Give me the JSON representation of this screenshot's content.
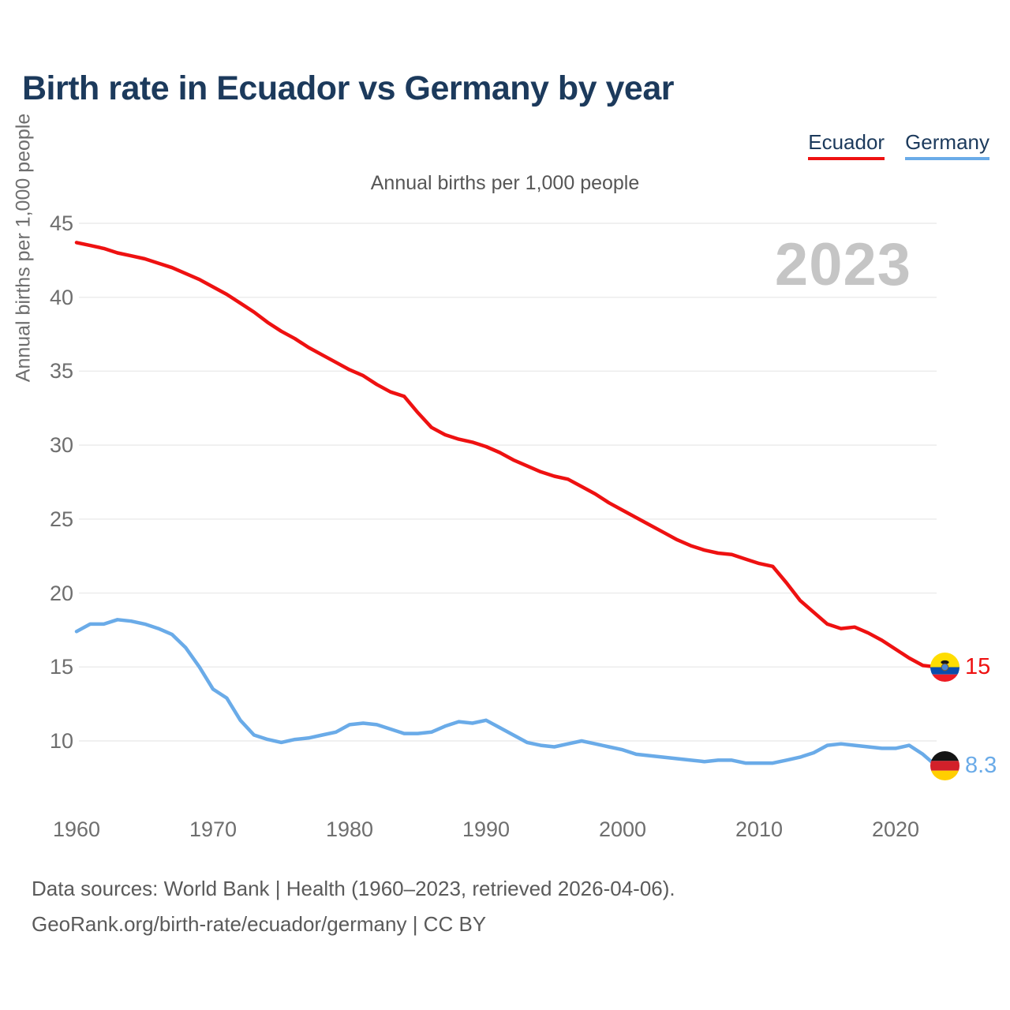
{
  "header": {
    "title": "Birth rate in Ecuador vs Germany by year"
  },
  "footer": {
    "line1": "Data sources: World Bank | Health (1960–2023, retrieved 2026-04-06).",
    "line2": "GeoRank.org/birth-rate/ecuador/germany | CC BY"
  },
  "chart_data": {
    "type": "line",
    "title": "Birth rate in Ecuador vs Germany by year",
    "subtitle": "Annual births per 1,000 people",
    "watermark": "2023",
    "xlabel": "",
    "ylabel": "Annual births per 1,000 people",
    "x_ticks": [
      1960,
      1970,
      1980,
      1990,
      2000,
      2010,
      2020
    ],
    "y_ticks": [
      45,
      40,
      35,
      30,
      25,
      20,
      15,
      10
    ],
    "xlim": [
      1960,
      2023
    ],
    "ylim": [
      7.5,
      45
    ],
    "grid": "horizontal",
    "legend_position": "top-right",
    "x": [
      1960,
      1961,
      1962,
      1963,
      1964,
      1965,
      1966,
      1967,
      1968,
      1969,
      1970,
      1971,
      1972,
      1973,
      1974,
      1975,
      1976,
      1977,
      1978,
      1979,
      1980,
      1981,
      1982,
      1983,
      1984,
      1985,
      1986,
      1987,
      1988,
      1989,
      1990,
      1991,
      1992,
      1993,
      1994,
      1995,
      1996,
      1997,
      1998,
      1999,
      2000,
      2001,
      2002,
      2003,
      2004,
      2005,
      2006,
      2007,
      2008,
      2009,
      2010,
      2011,
      2012,
      2013,
      2014,
      2015,
      2016,
      2017,
      2018,
      2019,
      2020,
      2021,
      2022,
      2023
    ],
    "series": [
      {
        "name": "Ecuador",
        "color": "#ee1111",
        "values": [
          43.7,
          43.5,
          43.3,
          43.0,
          42.8,
          42.6,
          42.3,
          42.0,
          41.6,
          41.2,
          40.7,
          40.2,
          39.6,
          39.0,
          38.3,
          37.7,
          37.2,
          36.6,
          36.1,
          35.6,
          35.1,
          34.7,
          34.1,
          33.6,
          33.3,
          32.2,
          31.2,
          30.7,
          30.4,
          30.2,
          29.9,
          29.5,
          29.0,
          28.6,
          28.2,
          27.9,
          27.7,
          27.2,
          26.7,
          26.1,
          25.6,
          25.1,
          24.6,
          24.1,
          23.6,
          23.2,
          22.9,
          22.7,
          22.6,
          22.3,
          22.0,
          21.8,
          20.7,
          19.5,
          18.7,
          17.9,
          17.6,
          17.7,
          17.3,
          16.8,
          16.2,
          15.6,
          15.1,
          15.0
        ]
      },
      {
        "name": "Germany",
        "color": "#6aabe8",
        "values": [
          17.4,
          17.9,
          17.9,
          18.2,
          18.1,
          17.9,
          17.6,
          17.2,
          16.3,
          15.0,
          13.5,
          12.9,
          11.4,
          10.4,
          10.1,
          9.9,
          10.1,
          10.2,
          10.4,
          10.6,
          11.1,
          11.2,
          11.1,
          10.8,
          10.5,
          10.5,
          10.6,
          11.0,
          11.3,
          11.2,
          11.4,
          10.9,
          10.4,
          9.9,
          9.7,
          9.6,
          9.8,
          10.0,
          9.8,
          9.6,
          9.4,
          9.1,
          9.0,
          8.9,
          8.8,
          8.7,
          8.6,
          8.7,
          8.7,
          8.5,
          8.5,
          8.5,
          8.7,
          8.9,
          9.2,
          9.7,
          9.8,
          9.7,
          9.6,
          9.5,
          9.5,
          9.7,
          9.1,
          8.3
        ]
      }
    ],
    "end_labels": [
      {
        "series": "Ecuador",
        "value": "15",
        "flag": "ecuador-flag"
      },
      {
        "series": "Germany",
        "value": "8.3",
        "flag": "germany-flag"
      }
    ]
  }
}
